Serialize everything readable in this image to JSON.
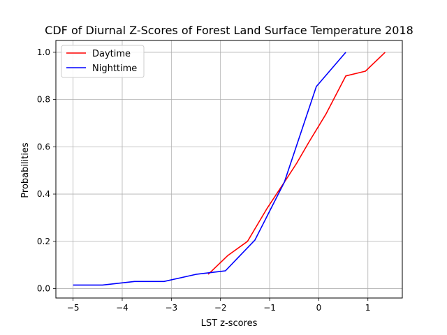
{
  "chart_data": {
    "type": "line",
    "title": "CDF of Diurnal Z-Scores of Forest Land Surface Temperature 2018",
    "xlabel": "LST z-scores",
    "ylabel": "Probabilities",
    "xlim": [
      -5.35,
      1.7
    ],
    "ylim": [
      -0.04,
      1.05
    ],
    "xticks": [
      -5,
      -4,
      -3,
      -2,
      -1,
      0,
      1
    ],
    "xtick_labels": [
      "−5",
      "−4",
      "−3",
      "−2",
      "−1",
      "0",
      "1"
    ],
    "yticks": [
      0.0,
      0.2,
      0.4,
      0.6,
      0.8,
      1.0
    ],
    "ytick_labels": [
      "0.0",
      "0.2",
      "0.4",
      "0.6",
      "0.8",
      "1.0"
    ],
    "grid": true,
    "legend_position": "top-left",
    "series": [
      {
        "name": "Daytime",
        "color": "#ff0000",
        "x": [
          -2.25,
          -1.85,
          -1.45,
          -1.05,
          -0.7,
          -0.45,
          -0.2,
          0.15,
          0.55,
          0.95,
          1.35
        ],
        "y": [
          0.06,
          0.14,
          0.2,
          0.34,
          0.45,
          0.53,
          0.62,
          0.74,
          0.9,
          0.92,
          1.0
        ]
      },
      {
        "name": "Nighttime",
        "color": "#0000ff",
        "x": [
          -5.0,
          -4.4,
          -3.75,
          -3.15,
          -2.5,
          -1.9,
          -1.3,
          -0.7,
          -0.05,
          0.55
        ],
        "y": [
          0.015,
          0.015,
          0.03,
          0.03,
          0.06,
          0.075,
          0.205,
          0.45,
          0.855,
          1.0
        ]
      }
    ]
  }
}
